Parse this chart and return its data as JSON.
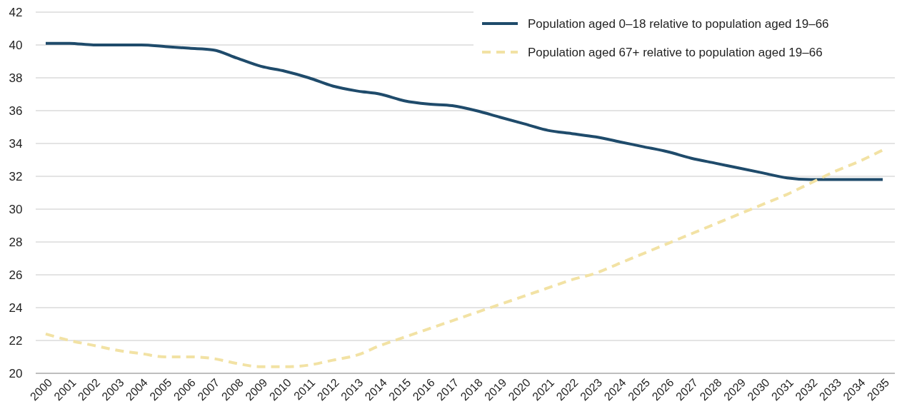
{
  "chart_data": {
    "type": "line",
    "categories": [
      "2000",
      "2001",
      "2002",
      "2003",
      "2004",
      "2005",
      "2006",
      "2007",
      "2008",
      "2009",
      "2010",
      "2011",
      "2012",
      "2013",
      "2014",
      "2015",
      "2016",
      "2017",
      "2018",
      "2019",
      "2020",
      "2021",
      "2022",
      "2023",
      "2024",
      "2025",
      "2026",
      "2027",
      "2028",
      "2029",
      "2030",
      "2031",
      "2032",
      "2033",
      "2034",
      "2035"
    ],
    "series": [
      {
        "name": "Population aged 0–18 relative to population aged 19–66",
        "color": "#1f4b6b",
        "line_style": "solid",
        "values": [
          40.1,
          40.1,
          40.0,
          40.0,
          40.0,
          39.9,
          39.8,
          39.7,
          39.2,
          38.7,
          38.4,
          38.0,
          37.5,
          37.2,
          37.0,
          36.6,
          36.4,
          36.3,
          36.0,
          35.6,
          35.2,
          34.8,
          34.6,
          34.4,
          34.1,
          33.8,
          33.5,
          33.1,
          32.8,
          32.5,
          32.2,
          31.9,
          31.8,
          31.8,
          31.8,
          31.8
        ]
      },
      {
        "name": "Population aged 67+ relative to population aged 19–66",
        "color": "#f2e2a4",
        "line_style": "dashed",
        "values": [
          22.4,
          22.0,
          21.7,
          21.4,
          21.2,
          21.0,
          21.0,
          20.9,
          20.6,
          20.4,
          20.4,
          20.5,
          20.8,
          21.1,
          21.7,
          22.2,
          22.7,
          23.2,
          23.7,
          24.2,
          24.7,
          25.2,
          25.7,
          26.1,
          26.7,
          27.3,
          27.9,
          28.5,
          29.1,
          29.7,
          30.3,
          30.9,
          31.6,
          32.3,
          32.9,
          33.6
        ]
      }
    ],
    "ylim": [
      20,
      42
    ],
    "yticks": [
      20,
      22,
      24,
      26,
      28,
      30,
      32,
      34,
      36,
      38,
      40,
      42
    ],
    "grid": "y",
    "legend": "top right"
  }
}
